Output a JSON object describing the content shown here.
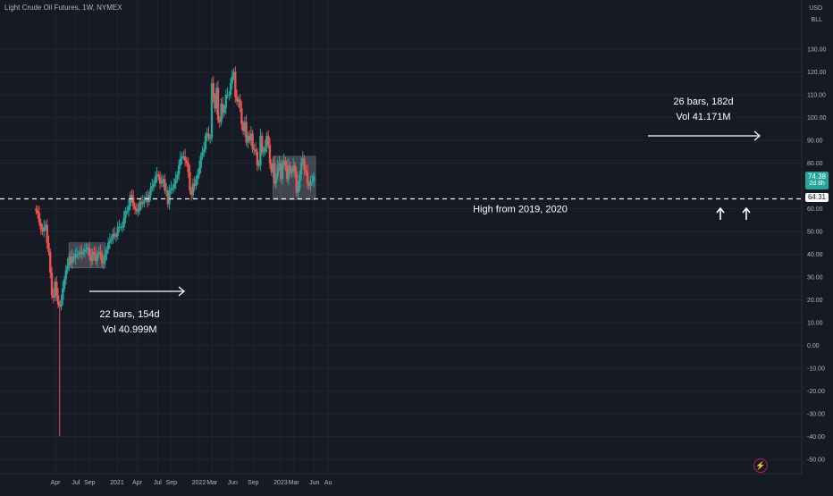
{
  "header": {
    "title": "Light Crude Oil Futures, 1W, NYMEX",
    "currency": "USD",
    "unit": "BLL"
  },
  "price_tags": {
    "last_price": "74.38",
    "countdown": "2d 8h",
    "line_price": "64.31",
    "last_color": "#26a69a",
    "line_color": "#ffffff"
  },
  "colors": {
    "background": "#161a25",
    "grid": "#1f2430",
    "up": "#26a69a",
    "down": "#ef5350",
    "text": "#b2b5be",
    "annotation": "#ffffff"
  },
  "annotations": {
    "box1_bars": "22 bars, 154d",
    "box1_vol": "Vol 40.999M",
    "box2_bars": "26 bars, 182d",
    "box2_vol": "Vol 41.171M",
    "hline_label": "High from 2019, 2020"
  },
  "chart_data": {
    "type": "candlestick",
    "title": "Light Crude Oil Futures, 1W, NYMEX",
    "x_ticks": [
      "Apr",
      "Jul",
      "Sep",
      "2021",
      "Apr",
      "Jul",
      "Sep",
      "2022",
      "Mar",
      "Jun",
      "Sep",
      "2023",
      "Mar",
      "Jun",
      "Au"
    ],
    "y_ticks": [
      "130.00",
      "120.00",
      "110.00",
      "100.00",
      "90.00",
      "80.00",
      "70.00",
      "60.00",
      "50.00",
      "40.00",
      "30.00",
      "20.00",
      "10.00",
      "0.00",
      "-10.00",
      "-20.00",
      "-30.00",
      "-40.00",
      "-50.00",
      "-60.00"
    ],
    "ylim": [
      -64,
      138
    ],
    "horizontal_line": 64.31,
    "last_price": 74.38,
    "range_boxes": [
      {
        "from": "2020-06-08",
        "to": "2020-11-02",
        "low": 34,
        "high": 45
      },
      {
        "from": "2022-12-05",
        "to": "2023-05-29",
        "low": 64,
        "high": 83
      }
    ],
    "series": [
      {
        "name": "weekly",
        "points": [
          {
            "d": "2020-01-06",
            "c": 59
          },
          {
            "d": "2020-01-13",
            "c": 58
          },
          {
            "d": "2020-01-20",
            "c": 54
          },
          {
            "d": "2020-01-27",
            "c": 51
          },
          {
            "d": "2020-02-03",
            "c": 50
          },
          {
            "d": "2020-02-10",
            "c": 52
          },
          {
            "d": "2020-02-17",
            "c": 53
          },
          {
            "d": "2020-02-24",
            "c": 45
          },
          {
            "d": "2020-03-02",
            "c": 41
          },
          {
            "d": "2020-03-09",
            "c": 32
          },
          {
            "d": "2020-03-16",
            "c": 22
          },
          {
            "d": "2020-03-23",
            "c": 21
          },
          {
            "d": "2020-03-30",
            "c": 28
          },
          {
            "d": "2020-04-06",
            "c": 22
          },
          {
            "d": "2020-04-13",
            "c": 18
          },
          {
            "d": "2020-04-20",
            "c": 17,
            "l": -40
          },
          {
            "d": "2020-04-27",
            "c": 20
          },
          {
            "d": "2020-05-04",
            "c": 25
          },
          {
            "d": "2020-05-11",
            "c": 29
          },
          {
            "d": "2020-05-18",
            "c": 33
          },
          {
            "d": "2020-05-25",
            "c": 35
          },
          {
            "d": "2020-06-01",
            "c": 39
          },
          {
            "d": "2020-06-08",
            "c": 36
          },
          {
            "d": "2020-06-15",
            "c": 39
          },
          {
            "d": "2020-06-22",
            "c": 38
          },
          {
            "d": "2020-06-29",
            "c": 40
          },
          {
            "d": "2020-07-06",
            "c": 40
          },
          {
            "d": "2020-07-13",
            "c": 40
          },
          {
            "d": "2020-07-20",
            "c": 41
          },
          {
            "d": "2020-07-27",
            "c": 40
          },
          {
            "d": "2020-08-03",
            "c": 41
          },
          {
            "d": "2020-08-10",
            "c": 42
          },
          {
            "d": "2020-08-17",
            "c": 42
          },
          {
            "d": "2020-08-24",
            "c": 43
          },
          {
            "d": "2020-08-31",
            "c": 39
          },
          {
            "d": "2020-09-07",
            "c": 37
          },
          {
            "d": "2020-09-14",
            "c": 41
          },
          {
            "d": "2020-09-21",
            "c": 40
          },
          {
            "d": "2020-09-28",
            "c": 37
          },
          {
            "d": "2020-10-05",
            "c": 40
          },
          {
            "d": "2020-10-12",
            "c": 41
          },
          {
            "d": "2020-10-19",
            "c": 40
          },
          {
            "d": "2020-10-26",
            "c": 36
          },
          {
            "d": "2020-11-02",
            "c": 37
          },
          {
            "d": "2020-11-09",
            "c": 40
          },
          {
            "d": "2020-11-16",
            "c": 42
          },
          {
            "d": "2020-11-23",
            "c": 45
          },
          {
            "d": "2020-11-30",
            "c": 46
          },
          {
            "d": "2020-12-07",
            "c": 47
          },
          {
            "d": "2020-12-14",
            "c": 49
          },
          {
            "d": "2020-12-21",
            "c": 48
          },
          {
            "d": "2020-12-28",
            "c": 48
          },
          {
            "d": "2021-01-04",
            "c": 52
          },
          {
            "d": "2021-01-11",
            "c": 52
          },
          {
            "d": "2021-01-18",
            "c": 52
          },
          {
            "d": "2021-01-25",
            "c": 52
          },
          {
            "d": "2021-02-01",
            "c": 56
          },
          {
            "d": "2021-02-08",
            "c": 59
          },
          {
            "d": "2021-02-15",
            "c": 59
          },
          {
            "d": "2021-02-22",
            "c": 61
          },
          {
            "d": "2021-03-01",
            "c": 66
          },
          {
            "d": "2021-03-08",
            "c": 65
          },
          {
            "d": "2021-03-15",
            "c": 61
          },
          {
            "d": "2021-03-22",
            "c": 60
          },
          {
            "d": "2021-03-29",
            "c": 59
          },
          {
            "d": "2021-04-05",
            "c": 59
          },
          {
            "d": "2021-04-12",
            "c": 63
          },
          {
            "d": "2021-04-19",
            "c": 62
          },
          {
            "d": "2021-04-26",
            "c": 63
          },
          {
            "d": "2021-05-03",
            "c": 64
          },
          {
            "d": "2021-05-10",
            "c": 65
          },
          {
            "d": "2021-05-17",
            "c": 63
          },
          {
            "d": "2021-05-24",
            "c": 66
          },
          {
            "d": "2021-05-31",
            "c": 69
          },
          {
            "d": "2021-06-07",
            "c": 70
          },
          {
            "d": "2021-06-14",
            "c": 71
          },
          {
            "d": "2021-06-21",
            "c": 74
          },
          {
            "d": "2021-06-28",
            "c": 75
          },
          {
            "d": "2021-07-05",
            "c": 74
          },
          {
            "d": "2021-07-12",
            "c": 71
          },
          {
            "d": "2021-07-19",
            "c": 72
          },
          {
            "d": "2021-07-26",
            "c": 73
          },
          {
            "d": "2021-08-02",
            "c": 68
          },
          {
            "d": "2021-08-09",
            "c": 68
          },
          {
            "d": "2021-08-16",
            "c": 62
          },
          {
            "d": "2021-08-23",
            "c": 68
          },
          {
            "d": "2021-08-30",
            "c": 69
          },
          {
            "d": "2021-09-06",
            "c": 69
          },
          {
            "d": "2021-09-13",
            "c": 71
          },
          {
            "d": "2021-09-20",
            "c": 73
          },
          {
            "d": "2021-09-27",
            "c": 75
          },
          {
            "d": "2021-10-04",
            "c": 79
          },
          {
            "d": "2021-10-11",
            "c": 82
          },
          {
            "d": "2021-10-18",
            "c": 83
          },
          {
            "d": "2021-10-25",
            "c": 83
          },
          {
            "d": "2021-11-01",
            "c": 81
          },
          {
            "d": "2021-11-08",
            "c": 80
          },
          {
            "d": "2021-11-15",
            "c": 76
          },
          {
            "d": "2021-11-22",
            "c": 68
          },
          {
            "d": "2021-11-29",
            "c": 66
          },
          {
            "d": "2021-12-06",
            "c": 71
          },
          {
            "d": "2021-12-13",
            "c": 70
          },
          {
            "d": "2021-12-20",
            "c": 73
          },
          {
            "d": "2021-12-27",
            "c": 75
          },
          {
            "d": "2022-01-03",
            "c": 78
          },
          {
            "d": "2022-01-10",
            "c": 83
          },
          {
            "d": "2022-01-17",
            "c": 85
          },
          {
            "d": "2022-01-24",
            "c": 86
          },
          {
            "d": "2022-01-31",
            "c": 92
          },
          {
            "d": "2022-02-07",
            "c": 93
          },
          {
            "d": "2022-02-14",
            "c": 91
          },
          {
            "d": "2022-02-21",
            "c": 91
          },
          {
            "d": "2022-02-28",
            "c": 115
          },
          {
            "d": "2022-03-07",
            "c": 109
          },
          {
            "d": "2022-03-14",
            "c": 104
          },
          {
            "d": "2022-03-21",
            "c": 113
          },
          {
            "d": "2022-03-28",
            "c": 99
          },
          {
            "d": "2022-04-04",
            "c": 98
          },
          {
            "d": "2022-04-11",
            "c": 106
          },
          {
            "d": "2022-04-18",
            "c": 102
          },
          {
            "d": "2022-04-25",
            "c": 104
          },
          {
            "d": "2022-05-02",
            "c": 110
          },
          {
            "d": "2022-05-09",
            "c": 110
          },
          {
            "d": "2022-05-16",
            "c": 110
          },
          {
            "d": "2022-05-23",
            "c": 115
          },
          {
            "d": "2022-05-30",
            "c": 118
          },
          {
            "d": "2022-06-06",
            "c": 120
          },
          {
            "d": "2022-06-13",
            "c": 109
          },
          {
            "d": "2022-06-20",
            "c": 107
          },
          {
            "d": "2022-06-27",
            "c": 108
          },
          {
            "d": "2022-07-04",
            "c": 104
          },
          {
            "d": "2022-07-11",
            "c": 97
          },
          {
            "d": "2022-07-18",
            "c": 94
          },
          {
            "d": "2022-07-25",
            "c": 98
          },
          {
            "d": "2022-08-01",
            "c": 89
          },
          {
            "d": "2022-08-08",
            "c": 92
          },
          {
            "d": "2022-08-15",
            "c": 90
          },
          {
            "d": "2022-08-22",
            "c": 93
          },
          {
            "d": "2022-08-29",
            "c": 86
          },
          {
            "d": "2022-09-05",
            "c": 86
          },
          {
            "d": "2022-09-12",
            "c": 85
          },
          {
            "d": "2022-09-19",
            "c": 79
          },
          {
            "d": "2022-09-26",
            "c": 79
          },
          {
            "d": "2022-10-03",
            "c": 92
          },
          {
            "d": "2022-10-10",
            "c": 85
          },
          {
            "d": "2022-10-17",
            "c": 85
          },
          {
            "d": "2022-10-24",
            "c": 87
          },
          {
            "d": "2022-10-31",
            "c": 92
          },
          {
            "d": "2022-11-07",
            "c": 88
          },
          {
            "d": "2022-11-14",
            "c": 80
          },
          {
            "d": "2022-11-21",
            "c": 76
          },
          {
            "d": "2022-11-28",
            "c": 80
          },
          {
            "d": "2022-12-05",
            "c": 71
          },
          {
            "d": "2022-12-12",
            "c": 74
          },
          {
            "d": "2022-12-19",
            "c": 79
          },
          {
            "d": "2022-12-26",
            "c": 80
          },
          {
            "d": "2023-01-02",
            "c": 73
          },
          {
            "d": "2023-01-09",
            "c": 79
          },
          {
            "d": "2023-01-16",
            "c": 81
          },
          {
            "d": "2023-01-23",
            "c": 79
          },
          {
            "d": "2023-01-30",
            "c": 73
          },
          {
            "d": "2023-02-06",
            "c": 79
          },
          {
            "d": "2023-02-13",
            "c": 76
          },
          {
            "d": "2023-02-20",
            "c": 76
          },
          {
            "d": "2023-02-27",
            "c": 79
          },
          {
            "d": "2023-03-06",
            "c": 76
          },
          {
            "d": "2023-03-13",
            "c": 67
          },
          {
            "d": "2023-03-20",
            "c": 69
          },
          {
            "d": "2023-03-27",
            "c": 75
          },
          {
            "d": "2023-04-03",
            "c": 80
          },
          {
            "d": "2023-04-10",
            "c": 82
          },
          {
            "d": "2023-04-17",
            "c": 77
          },
          {
            "d": "2023-04-24",
            "c": 76
          },
          {
            "d": "2023-05-01",
            "c": 71
          },
          {
            "d": "2023-05-08",
            "c": 70
          },
          {
            "d": "2023-05-15",
            "c": 72
          },
          {
            "d": "2023-05-22",
            "c": 72
          },
          {
            "d": "2023-05-29",
            "c": 74.38
          }
        ]
      }
    ]
  }
}
